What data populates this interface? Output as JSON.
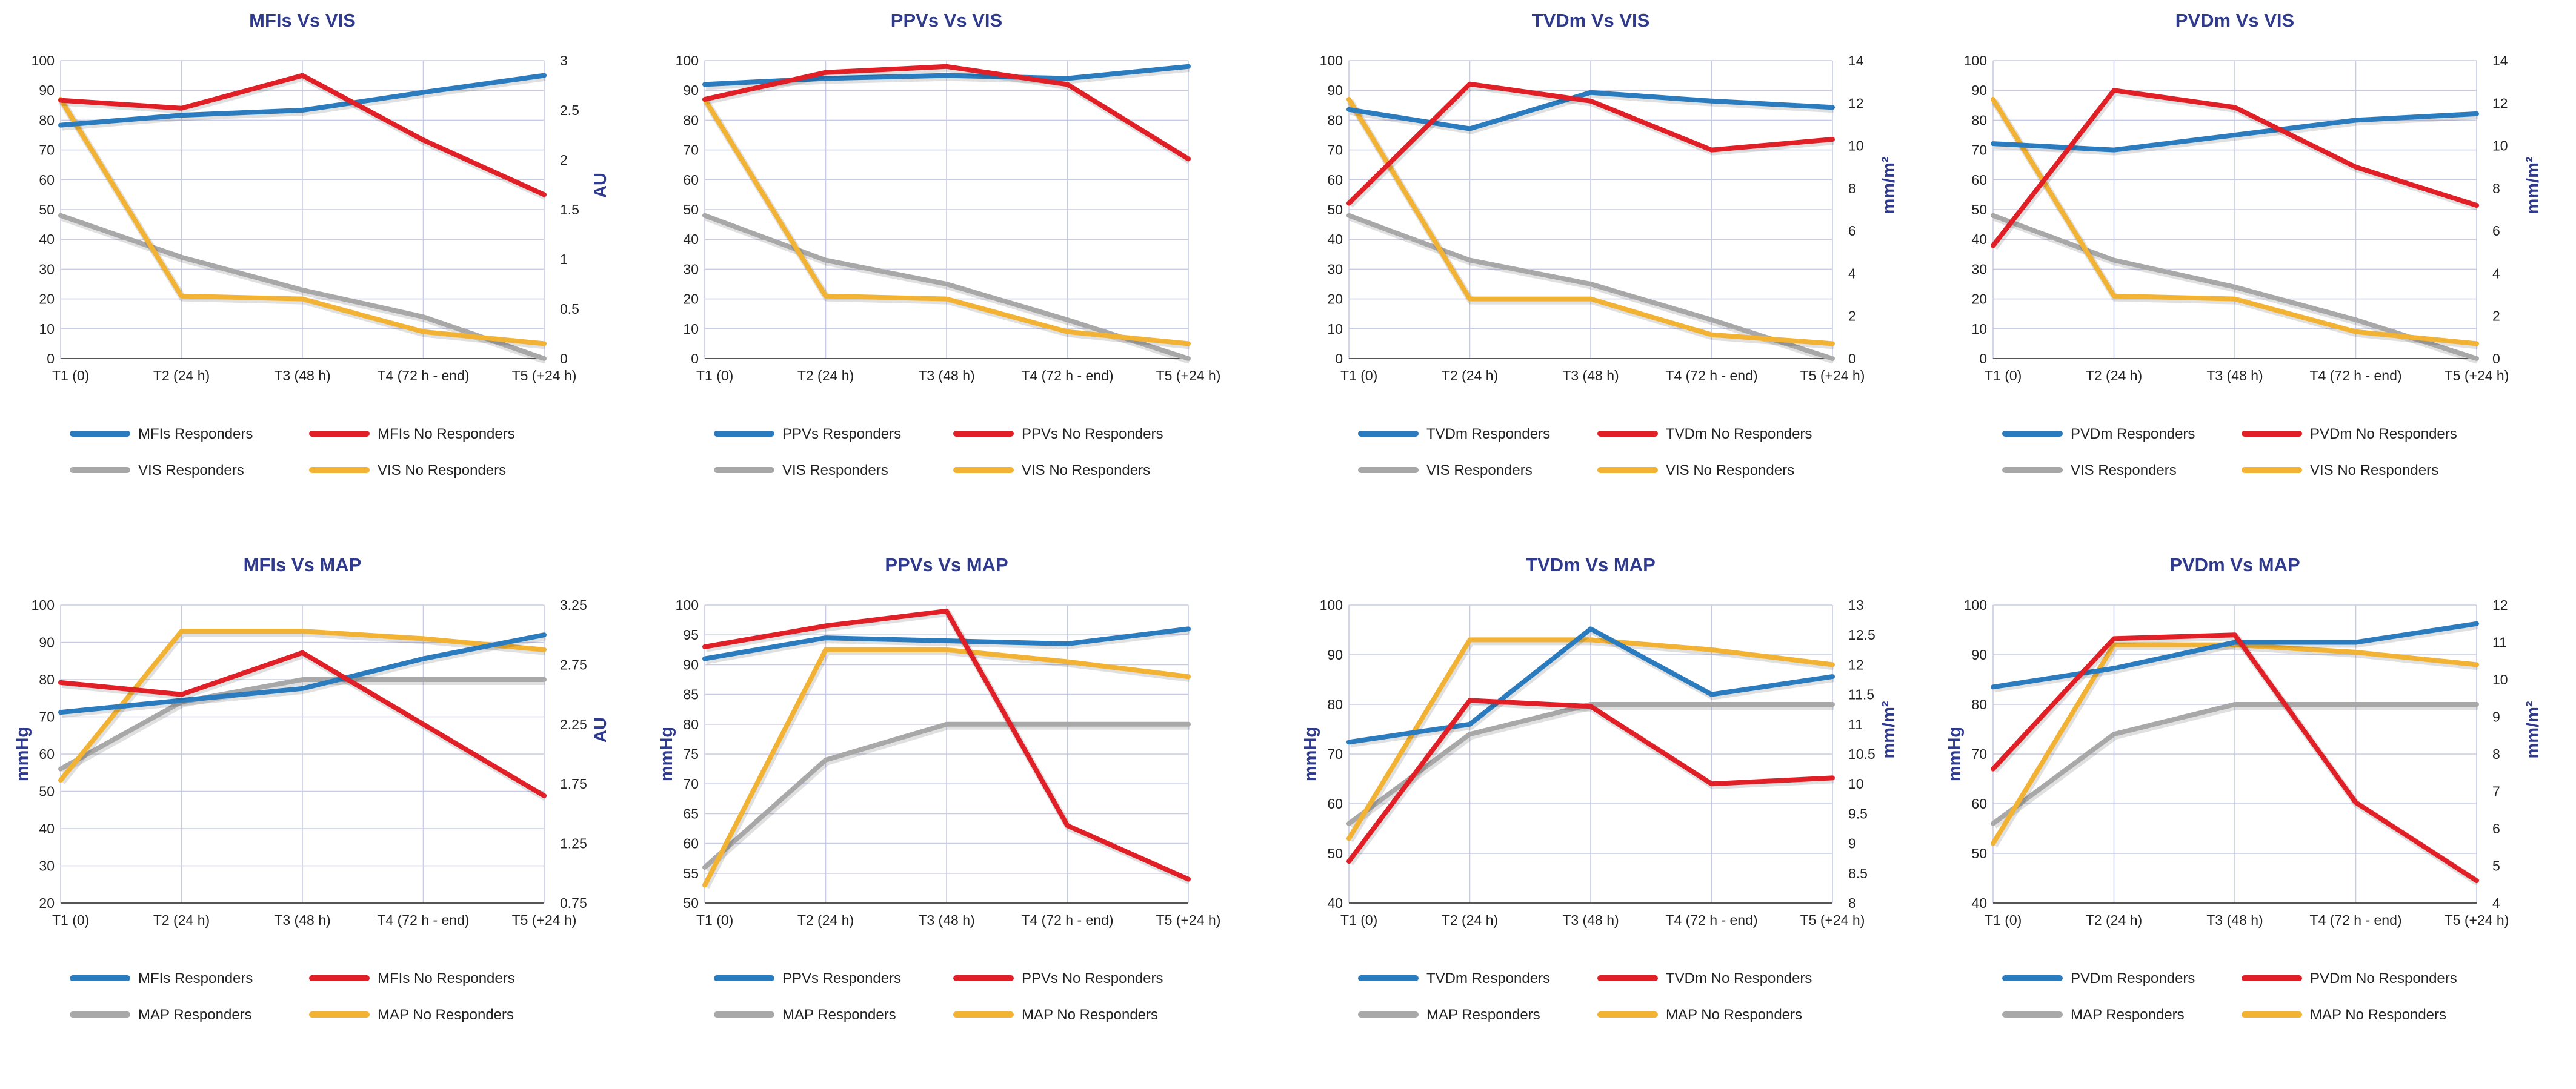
{
  "colors": {
    "responders_primary": "#2b7bbf",
    "no_responders_primary": "#e02026",
    "responders_secondary": "#a8a8a8",
    "no_responders_secondary": "#f2b233",
    "title": "#2f3a8c",
    "grid": "#c8cbe6"
  },
  "chart_data": [
    {
      "type": "line",
      "title": "MFIs Vs VIS",
      "categories": [
        "T1 (0)",
        "T2 (24 h)",
        "T3 (48 h)",
        "T4 (72 h - end)",
        "T5 (+24 h)"
      ],
      "ylabel": "",
      "y2label": "AU",
      "ylim": [
        0,
        100
      ],
      "yticks": [
        0,
        10,
        20,
        30,
        40,
        50,
        60,
        70,
        80,
        90,
        100
      ],
      "y2lim": [
        0,
        3
      ],
      "y2ticks": [
        "0",
        "0.5",
        "1",
        "1.5",
        "2",
        "2.5",
        "3"
      ],
      "legend_position": "bottom",
      "series": [
        {
          "name": "MFIs Responders",
          "axis": "y2",
          "color": "responders_primary",
          "values": [
            2.35,
            2.45,
            2.5,
            2.68,
            2.85
          ]
        },
        {
          "name": "MFIs No Responders",
          "axis": "y2",
          "color": "no_responders_primary",
          "values": [
            2.6,
            2.52,
            2.85,
            2.2,
            1.65
          ]
        },
        {
          "name": "VIS Responders",
          "axis": "y",
          "color": "responders_secondary",
          "values": [
            48,
            34,
            23,
            14,
            0
          ]
        },
        {
          "name": "VIS No Responders",
          "axis": "y",
          "color": "no_responders_secondary",
          "values": [
            87,
            21,
            20,
            9,
            5
          ]
        }
      ]
    },
    {
      "type": "line",
      "title": "PPVs Vs VIS",
      "categories": [
        "T1 (0)",
        "T2 (24 h)",
        "T3 (48 h)",
        "T4 (72 h - end)",
        "T5 (+24 h)"
      ],
      "ylabel": "",
      "y2label": "",
      "ylim": [
        0,
        100
      ],
      "yticks": [
        0,
        10,
        20,
        30,
        40,
        50,
        60,
        70,
        80,
        90,
        100
      ],
      "y2lim": null,
      "y2ticks": [],
      "legend_position": "bottom",
      "series": [
        {
          "name": "PPVs Responders",
          "axis": "y",
          "color": "responders_primary",
          "values": [
            92,
            94,
            95,
            94,
            98
          ]
        },
        {
          "name": "PPVs No Responders",
          "axis": "y",
          "color": "no_responders_primary",
          "values": [
            87,
            96,
            98,
            92,
            67
          ]
        },
        {
          "name": "VIS Responders",
          "axis": "y",
          "color": "responders_secondary",
          "values": [
            48,
            33,
            25,
            13,
            0
          ]
        },
        {
          "name": "VIS No Responders",
          "axis": "y",
          "color": "no_responders_secondary",
          "values": [
            87,
            21,
            20,
            9,
            5
          ]
        }
      ]
    },
    {
      "type": "line",
      "title": "TVDm Vs VIS",
      "categories": [
        "T1 (0)",
        "T2 (24 h)",
        "T3 (48 h)",
        "T4 (72 h - end)",
        "T5 (+24 h)"
      ],
      "ylabel": "",
      "y2label": "mm/m²",
      "ylim": [
        0,
        100
      ],
      "yticks": [
        0,
        10,
        20,
        30,
        40,
        50,
        60,
        70,
        80,
        90,
        100
      ],
      "y2lim": [
        0,
        14
      ],
      "y2ticks": [
        "0",
        "2",
        "4",
        "6",
        "8",
        "10",
        "12",
        "14"
      ],
      "legend_position": "bottom",
      "series": [
        {
          "name": "TVDm Responders",
          "axis": "y2",
          "color": "responders_primary",
          "values": [
            11.7,
            10.8,
            12.5,
            12.1,
            11.8
          ]
        },
        {
          "name": "TVDm No Responders",
          "axis": "y2",
          "color": "no_responders_primary",
          "values": [
            7.3,
            12.9,
            12.1,
            9.8,
            10.3
          ]
        },
        {
          "name": "VIS Responders",
          "axis": "y",
          "color": "responders_secondary",
          "values": [
            48,
            33,
            25,
            13,
            0
          ]
        },
        {
          "name": "VIS No Responders",
          "axis": "y",
          "color": "no_responders_secondary",
          "values": [
            87,
            20,
            20,
            8,
            5
          ]
        }
      ]
    },
    {
      "type": "line",
      "title": "PVDm Vs VIS",
      "categories": [
        "T1 (0)",
        "T2 (24 h)",
        "T3 (48 h)",
        "T4 (72 h - end)",
        "T5 (+24 h)"
      ],
      "ylabel": "",
      "y2label": "mm/m²",
      "ylim": [
        0,
        100
      ],
      "yticks": [
        0,
        10,
        20,
        30,
        40,
        50,
        60,
        70,
        80,
        90,
        100
      ],
      "y2lim": [
        0,
        14
      ],
      "y2ticks": [
        "0",
        "2",
        "4",
        "6",
        "8",
        "10",
        "12",
        "14"
      ],
      "legend_position": "bottom",
      "series": [
        {
          "name": "PVDm Responders",
          "axis": "y2",
          "color": "responders_primary",
          "values": [
            10.1,
            9.8,
            10.5,
            11.2,
            11.5
          ]
        },
        {
          "name": "PVDm No Responders",
          "axis": "y2",
          "color": "no_responders_primary",
          "values": [
            5.3,
            12.6,
            11.8,
            9.0,
            7.2
          ]
        },
        {
          "name": "VIS Responders",
          "axis": "y",
          "color": "responders_secondary",
          "values": [
            48,
            33,
            24,
            13,
            0
          ]
        },
        {
          "name": "VIS No Responders",
          "axis": "y",
          "color": "no_responders_secondary",
          "values": [
            87,
            21,
            20,
            9,
            5
          ]
        }
      ]
    },
    {
      "type": "line",
      "title": "MFIs Vs MAP",
      "categories": [
        "T1 (0)",
        "T2 (24 h)",
        "T3 (48 h)",
        "T4 (72 h - end)",
        "T5 (+24 h)"
      ],
      "ylabel": "mmHg",
      "y2label": "AU",
      "ylim": [
        20,
        100
      ],
      "yticks": [
        20,
        30,
        40,
        50,
        60,
        70,
        80,
        90,
        100
      ],
      "y2lim": [
        0.75,
        3.25
      ],
      "y2ticks": [
        "0.75",
        "1.25",
        "1.75",
        "2.25",
        "2.75",
        "3.25"
      ],
      "legend_position": "bottom",
      "series": [
        {
          "name": "MFIs Responders",
          "axis": "y2",
          "color": "responders_primary",
          "values": [
            2.35,
            2.45,
            2.55,
            2.8,
            3.0
          ]
        },
        {
          "name": "MFIs No Responders",
          "axis": "y2",
          "color": "no_responders_primary",
          "values": [
            2.6,
            2.5,
            2.85,
            2.25,
            1.65
          ]
        },
        {
          "name": "MAP Responders",
          "axis": "y",
          "color": "responders_secondary",
          "values": [
            56,
            74,
            80,
            80,
            80
          ]
        },
        {
          "name": "MAP No Responders",
          "axis": "y",
          "color": "no_responders_secondary",
          "values": [
            53,
            93,
            93,
            91,
            88
          ]
        }
      ]
    },
    {
      "type": "line",
      "title": "PPVs Vs MAP",
      "categories": [
        "T1 (0)",
        "T2 (24 h)",
        "T3 (48 h)",
        "T4 (72 h - end)",
        "T5 (+24 h)"
      ],
      "ylabel": "mmHg",
      "y2label": "",
      "ylim": [
        50,
        100
      ],
      "yticks": [
        50,
        55,
        60,
        65,
        70,
        75,
        80,
        85,
        90,
        95,
        100
      ],
      "y2lim": null,
      "y2ticks": [],
      "legend_position": "bottom",
      "series": [
        {
          "name": "PPVs Responders",
          "axis": "y",
          "color": "responders_primary",
          "values": [
            91,
            94.5,
            94,
            93.5,
            96
          ]
        },
        {
          "name": "PPVs No Responders",
          "axis": "y",
          "color": "no_responders_primary",
          "values": [
            93,
            96.5,
            99,
            63,
            54
          ]
        },
        {
          "name": "MAP Responders",
          "axis": "y",
          "color": "responders_secondary",
          "values": [
            56,
            74,
            80,
            80,
            80
          ]
        },
        {
          "name": "MAP No Responders",
          "axis": "y",
          "color": "no_responders_secondary",
          "values": [
            53,
            92.5,
            92.5,
            90.5,
            88
          ]
        }
      ]
    },
    {
      "type": "line",
      "title": "TVDm Vs MAP",
      "categories": [
        "T1 (0)",
        "T2 (24 h)",
        "T3 (48 h)",
        "T4 (72 h - end)",
        "T5 (+24 h)"
      ],
      "ylabel": "mmHg",
      "y2label": "mm/m²",
      "ylim": [
        40,
        100
      ],
      "yticks": [
        40,
        50,
        60,
        70,
        80,
        90,
        100
      ],
      "y2lim": [
        8,
        13
      ],
      "y2ticks": [
        "8",
        "8.5",
        "9",
        "9.5",
        "10",
        "10.5",
        "11",
        "11.5",
        "12",
        "12.5",
        "13"
      ],
      "legend_position": "bottom",
      "series": [
        {
          "name": "TVDm Responders",
          "axis": "y2",
          "color": "responders_primary",
          "values": [
            10.7,
            11.0,
            12.6,
            11.5,
            11.8
          ]
        },
        {
          "name": "TVDm No Responders",
          "axis": "y2",
          "color": "no_responders_primary",
          "values": [
            8.7,
            11.4,
            11.3,
            10.0,
            10.1
          ]
        },
        {
          "name": "MAP Responders",
          "axis": "y",
          "color": "responders_secondary",
          "values": [
            56,
            74,
            80,
            80,
            80
          ]
        },
        {
          "name": "MAP No Responders",
          "axis": "y",
          "color": "no_responders_secondary",
          "values": [
            53,
            93,
            93,
            91,
            88
          ]
        }
      ]
    },
    {
      "type": "line",
      "title": "PVDm Vs MAP",
      "categories": [
        "T1 (0)",
        "T2 (24 h)",
        "T3 (48 h)",
        "T4 (72 h - end)",
        "T5 (+24 h)"
      ],
      "ylabel": "mmHg",
      "y2label": "mm/m²",
      "ylim": [
        40,
        100
      ],
      "yticks": [
        40,
        50,
        60,
        70,
        80,
        90,
        100
      ],
      "y2lim": [
        4,
        12
      ],
      "y2ticks": [
        "4",
        "5",
        "6",
        "7",
        "8",
        "9",
        "10",
        "11",
        "12"
      ],
      "legend_position": "bottom",
      "series": [
        {
          "name": "PVDm Responders",
          "axis": "y2",
          "color": "responders_primary",
          "values": [
            9.8,
            10.3,
            11.0,
            11.0,
            11.5
          ]
        },
        {
          "name": "PVDm No Responders",
          "axis": "y2",
          "color": "no_responders_primary",
          "values": [
            7.6,
            11.1,
            11.2,
            6.7,
            4.6
          ]
        },
        {
          "name": "MAP Responders",
          "axis": "y",
          "color": "responders_secondary",
          "values": [
            56,
            74,
            80,
            80,
            80
          ]
        },
        {
          "name": "MAP No Responders",
          "axis": "y",
          "color": "no_responders_secondary",
          "values": [
            52,
            92,
            92,
            90.5,
            88
          ]
        }
      ]
    }
  ]
}
